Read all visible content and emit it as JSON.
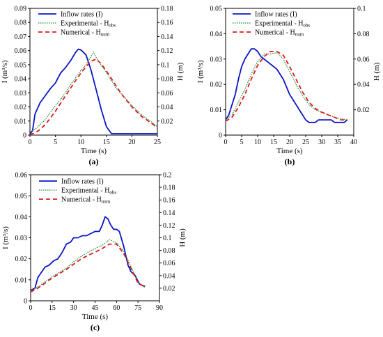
{
  "colors": {
    "inflow": "#0a14c8",
    "experimental": "#1a8a3a",
    "numerical": "#e01818"
  },
  "chart_data": [
    {
      "type": "line",
      "label": "(a)",
      "xlabel": "Time (s)",
      "ylabel_left": "I (m³/s)",
      "ylabel_right": "H (m)",
      "xlim": [
        0,
        25
      ],
      "ylim_left": [
        0,
        0.09
      ],
      "ylim_right": [
        0,
        0.18
      ],
      "xticks": [
        "0",
        "5",
        "10",
        "15",
        "20",
        "25"
      ],
      "yticks_left": [
        "0",
        "0.01",
        "0.02",
        "0.03",
        "0.04",
        "0.05",
        "0.06",
        "0.07",
        "0.08",
        "0.09"
      ],
      "yticks_right": [
        "0.02",
        "0.04",
        "0.06",
        "0.08",
        "0.1",
        "0.12",
        "0.14",
        "0.16",
        "0.18"
      ],
      "legend": [
        "Inflow rates (I)",
        "Experimental - H_obs",
        "Numerical - H_num"
      ],
      "series": [
        {
          "name": "Inflow rates (I)",
          "axis": "left",
          "style": "solid",
          "x": [
            0,
            0.5,
            1,
            2,
            3,
            4,
            5,
            6,
            7,
            8,
            9,
            9.5,
            10,
            11,
            12,
            13,
            14,
            15,
            16,
            17,
            18,
            20,
            22,
            24,
            25
          ],
          "y": [
            0.001,
            0.003,
            0.015,
            0.023,
            0.028,
            0.033,
            0.037,
            0.044,
            0.048,
            0.053,
            0.059,
            0.061,
            0.0605,
            0.057,
            0.046,
            0.032,
            0.018,
            0.006,
            0.001,
            0.001,
            0.001,
            0.001,
            0.001,
            0.001,
            0.001
          ]
        },
        {
          "name": "Experimental - H_obs",
          "axis": "right",
          "style": "dotted",
          "x": [
            0,
            1,
            2,
            3,
            4,
            5,
            6,
            7,
            8,
            9,
            10,
            11,
            12,
            12.5,
            13,
            14,
            15,
            16,
            17,
            18,
            20,
            22,
            24,
            25
          ],
          "y": [
            0.005,
            0.008,
            0.015,
            0.022,
            0.032,
            0.042,
            0.05,
            0.061,
            0.072,
            0.082,
            0.092,
            0.1,
            0.112,
            0.118,
            0.11,
            0.099,
            0.089,
            0.077,
            0.066,
            0.058,
            0.042,
            0.028,
            0.018,
            0.012
          ]
        },
        {
          "name": "Numerical - H_num",
          "axis": "right",
          "style": "dashed",
          "x": [
            0,
            1,
            2,
            3,
            4,
            5,
            6,
            7,
            8,
            9,
            10,
            11,
            12,
            13,
            14,
            15,
            16,
            17,
            18,
            20,
            22,
            24,
            25
          ],
          "y": [
            0.001,
            0.003,
            0.008,
            0.015,
            0.024,
            0.034,
            0.045,
            0.056,
            0.067,
            0.078,
            0.088,
            0.097,
            0.105,
            0.108,
            0.101,
            0.091,
            0.08,
            0.069,
            0.058,
            0.04,
            0.026,
            0.016,
            0.01
          ]
        }
      ]
    },
    {
      "type": "line",
      "label": "(b)",
      "xlabel": "Time (s)",
      "ylabel_left": "I (m³/s)",
      "ylabel_right": "H (m)",
      "xlim": [
        0,
        40
      ],
      "ylim_left": [
        0,
        0.05
      ],
      "ylim_right": [
        0,
        0.1
      ],
      "xticks": [
        "0",
        "5",
        "10",
        "15",
        "20",
        "25",
        "30",
        "35",
        "40"
      ],
      "yticks_left": [
        "0",
        "0.01",
        "0.02",
        "0.03",
        "0.04",
        "0.05"
      ],
      "yticks_right": [
        "0.02",
        "0.04",
        "0.06",
        "0.08",
        "0.1"
      ],
      "legend": [
        "Inflow rates (I)",
        "Experimental - H_obs",
        "Numerical - H_num"
      ],
      "series": [
        {
          "name": "Inflow rates (I)",
          "axis": "left",
          "style": "solid",
          "x": [
            0,
            1,
            2,
            3,
            4,
            5,
            6,
            7,
            8,
            9,
            10,
            11,
            12,
            13,
            14,
            15,
            16,
            17,
            18,
            19,
            20,
            21,
            22,
            23,
            24,
            25,
            26,
            27,
            28,
            29,
            30,
            31,
            32,
            33,
            34,
            35,
            36,
            37,
            38
          ],
          "y": [
            0.006,
            0.008,
            0.012,
            0.016,
            0.022,
            0.027,
            0.03,
            0.032,
            0.034,
            0.034,
            0.033,
            0.031,
            0.03,
            0.029,
            0.028,
            0.027,
            0.026,
            0.024,
            0.022,
            0.019,
            0.016,
            0.014,
            0.012,
            0.01,
            0.008,
            0.006,
            0.005,
            0.005,
            0.005,
            0.006,
            0.006,
            0.006,
            0.006,
            0.006,
            0.005,
            0.005,
            0.005,
            0.005,
            0.006
          ]
        },
        {
          "name": "Experimental - H_obs",
          "axis": "right",
          "style": "dotted",
          "x": [
            0,
            2,
            4,
            6,
            8,
            10,
            12,
            14,
            16,
            18,
            20,
            22,
            24,
            26,
            28,
            30,
            32,
            34,
            36,
            38
          ],
          "y": [
            0.012,
            0.016,
            0.026,
            0.036,
            0.048,
            0.058,
            0.064,
            0.064,
            0.065,
            0.06,
            0.05,
            0.04,
            0.031,
            0.024,
            0.02,
            0.018,
            0.016,
            0.014,
            0.013,
            0.012
          ]
        },
        {
          "name": "Numerical - H_num",
          "axis": "right",
          "style": "dashed",
          "x": [
            0,
            2,
            4,
            6,
            8,
            10,
            12,
            14,
            16,
            18,
            20,
            22,
            24,
            26,
            28,
            30,
            32,
            34,
            36,
            38
          ],
          "y": [
            0.011,
            0.014,
            0.022,
            0.032,
            0.044,
            0.055,
            0.062,
            0.066,
            0.066,
            0.063,
            0.054,
            0.044,
            0.034,
            0.026,
            0.021,
            0.018,
            0.016,
            0.014,
            0.012,
            0.012
          ]
        }
      ]
    },
    {
      "type": "line",
      "label": "(c)",
      "xlabel": "Time (s)",
      "ylabel_left": "I (m³/s)",
      "ylabel_right": "H (m)",
      "xlim": [
        0,
        90
      ],
      "ylim_left": [
        0,
        0.06
      ],
      "ylim_right": [
        0,
        0.2
      ],
      "xticks": [
        "0",
        "15",
        "30",
        "45",
        "60",
        "75",
        "90"
      ],
      "yticks_left": [
        "0",
        "0.01",
        "0.02",
        "0.03",
        "0.04",
        "0.05",
        "0.06"
      ],
      "yticks_right": [
        "0.02",
        "0.04",
        "0.06",
        "0.08",
        "0.1",
        "0.12",
        "0.14",
        "0.16",
        "0.18",
        "0.2"
      ],
      "legend": [
        "Inflow rates (I)",
        "Experimental - H_obs",
        "Numerical - H_num"
      ],
      "series": [
        {
          "name": "Inflow rates (I)",
          "axis": "left",
          "style": "solid",
          "x": [
            0,
            3,
            5,
            8,
            10,
            13,
            16,
            19,
            22,
            25,
            28,
            30,
            33,
            36,
            39,
            42,
            45,
            48,
            50,
            52,
            54,
            56,
            58,
            60,
            62,
            65,
            68,
            70,
            73,
            76,
            79,
            80
          ],
          "y": [
            0.005,
            0.006,
            0.011,
            0.014,
            0.016,
            0.017,
            0.019,
            0.02,
            0.023,
            0.027,
            0.028,
            0.03,
            0.03,
            0.031,
            0.031,
            0.032,
            0.033,
            0.033,
            0.036,
            0.04,
            0.039,
            0.036,
            0.034,
            0.034,
            0.033,
            0.026,
            0.017,
            0.014,
            0.012,
            0.008,
            0.007,
            0.007
          ]
        },
        {
          "name": "Experimental - H_obs",
          "axis": "right",
          "style": "dotted",
          "x": [
            0,
            5,
            10,
            15,
            20,
            25,
            30,
            35,
            40,
            45,
            50,
            55,
            60,
            65,
            70,
            75,
            80
          ],
          "y": [
            0.015,
            0.022,
            0.03,
            0.038,
            0.045,
            0.052,
            0.062,
            0.07,
            0.077,
            0.083,
            0.088,
            0.097,
            0.092,
            0.078,
            0.055,
            0.03,
            0.021
          ]
        },
        {
          "name": "Numerical - H_num",
          "axis": "right",
          "style": "dashed",
          "x": [
            0,
            5,
            10,
            15,
            20,
            25,
            30,
            35,
            40,
            45,
            50,
            55,
            60,
            65,
            70,
            75,
            80
          ],
          "y": [
            0.014,
            0.02,
            0.028,
            0.036,
            0.043,
            0.05,
            0.058,
            0.066,
            0.072,
            0.077,
            0.083,
            0.09,
            0.09,
            0.075,
            0.052,
            0.028,
            0.022
          ]
        }
      ]
    }
  ]
}
